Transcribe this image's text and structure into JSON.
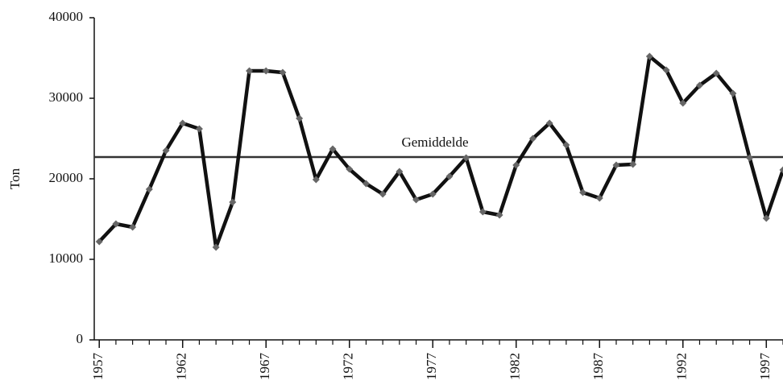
{
  "chart_data": {
    "type": "line",
    "y_label": "Ton",
    "x": [
      1957,
      1958,
      1959,
      1960,
      1961,
      1962,
      1963,
      1964,
      1965,
      1966,
      1967,
      1968,
      1969,
      1970,
      1971,
      1972,
      1973,
      1974,
      1975,
      1976,
      1977,
      1978,
      1979,
      1980,
      1981,
      1982,
      1983,
      1984,
      1985,
      1986,
      1987,
      1988,
      1989,
      1990,
      1991,
      1992,
      1993,
      1994,
      1995,
      1996,
      1997,
      1998
    ],
    "series": [
      {
        "color": "#111111",
        "marker_color": "#666666",
        "values": [
          12200,
          14400,
          14000,
          18700,
          23500,
          26900,
          26200,
          11500,
          17100,
          33400,
          33400,
          33200,
          27500,
          19900,
          23700,
          21200,
          19400,
          18100,
          20900,
          17400,
          18100,
          20300,
          22600,
          15900,
          15500,
          21700,
          25000,
          26900,
          24200,
          18300,
          17600,
          21700,
          21800,
          35200,
          33500,
          29400,
          31600,
          33100,
          30600,
          22600,
          15100,
          21100
        ]
      }
    ],
    "reference_line": {
      "value": 22700,
      "label": "Gemiddelde",
      "color": "#333333"
    },
    "xlim": [
      1956.7,
      1998
    ],
    "xticks": [
      1957,
      1962,
      1967,
      1972,
      1977,
      1982,
      1987,
      1992,
      1997
    ],
    "ylim": [
      0,
      40000
    ],
    "yticks": [
      0,
      10000,
      20000,
      30000,
      40000
    ]
  }
}
